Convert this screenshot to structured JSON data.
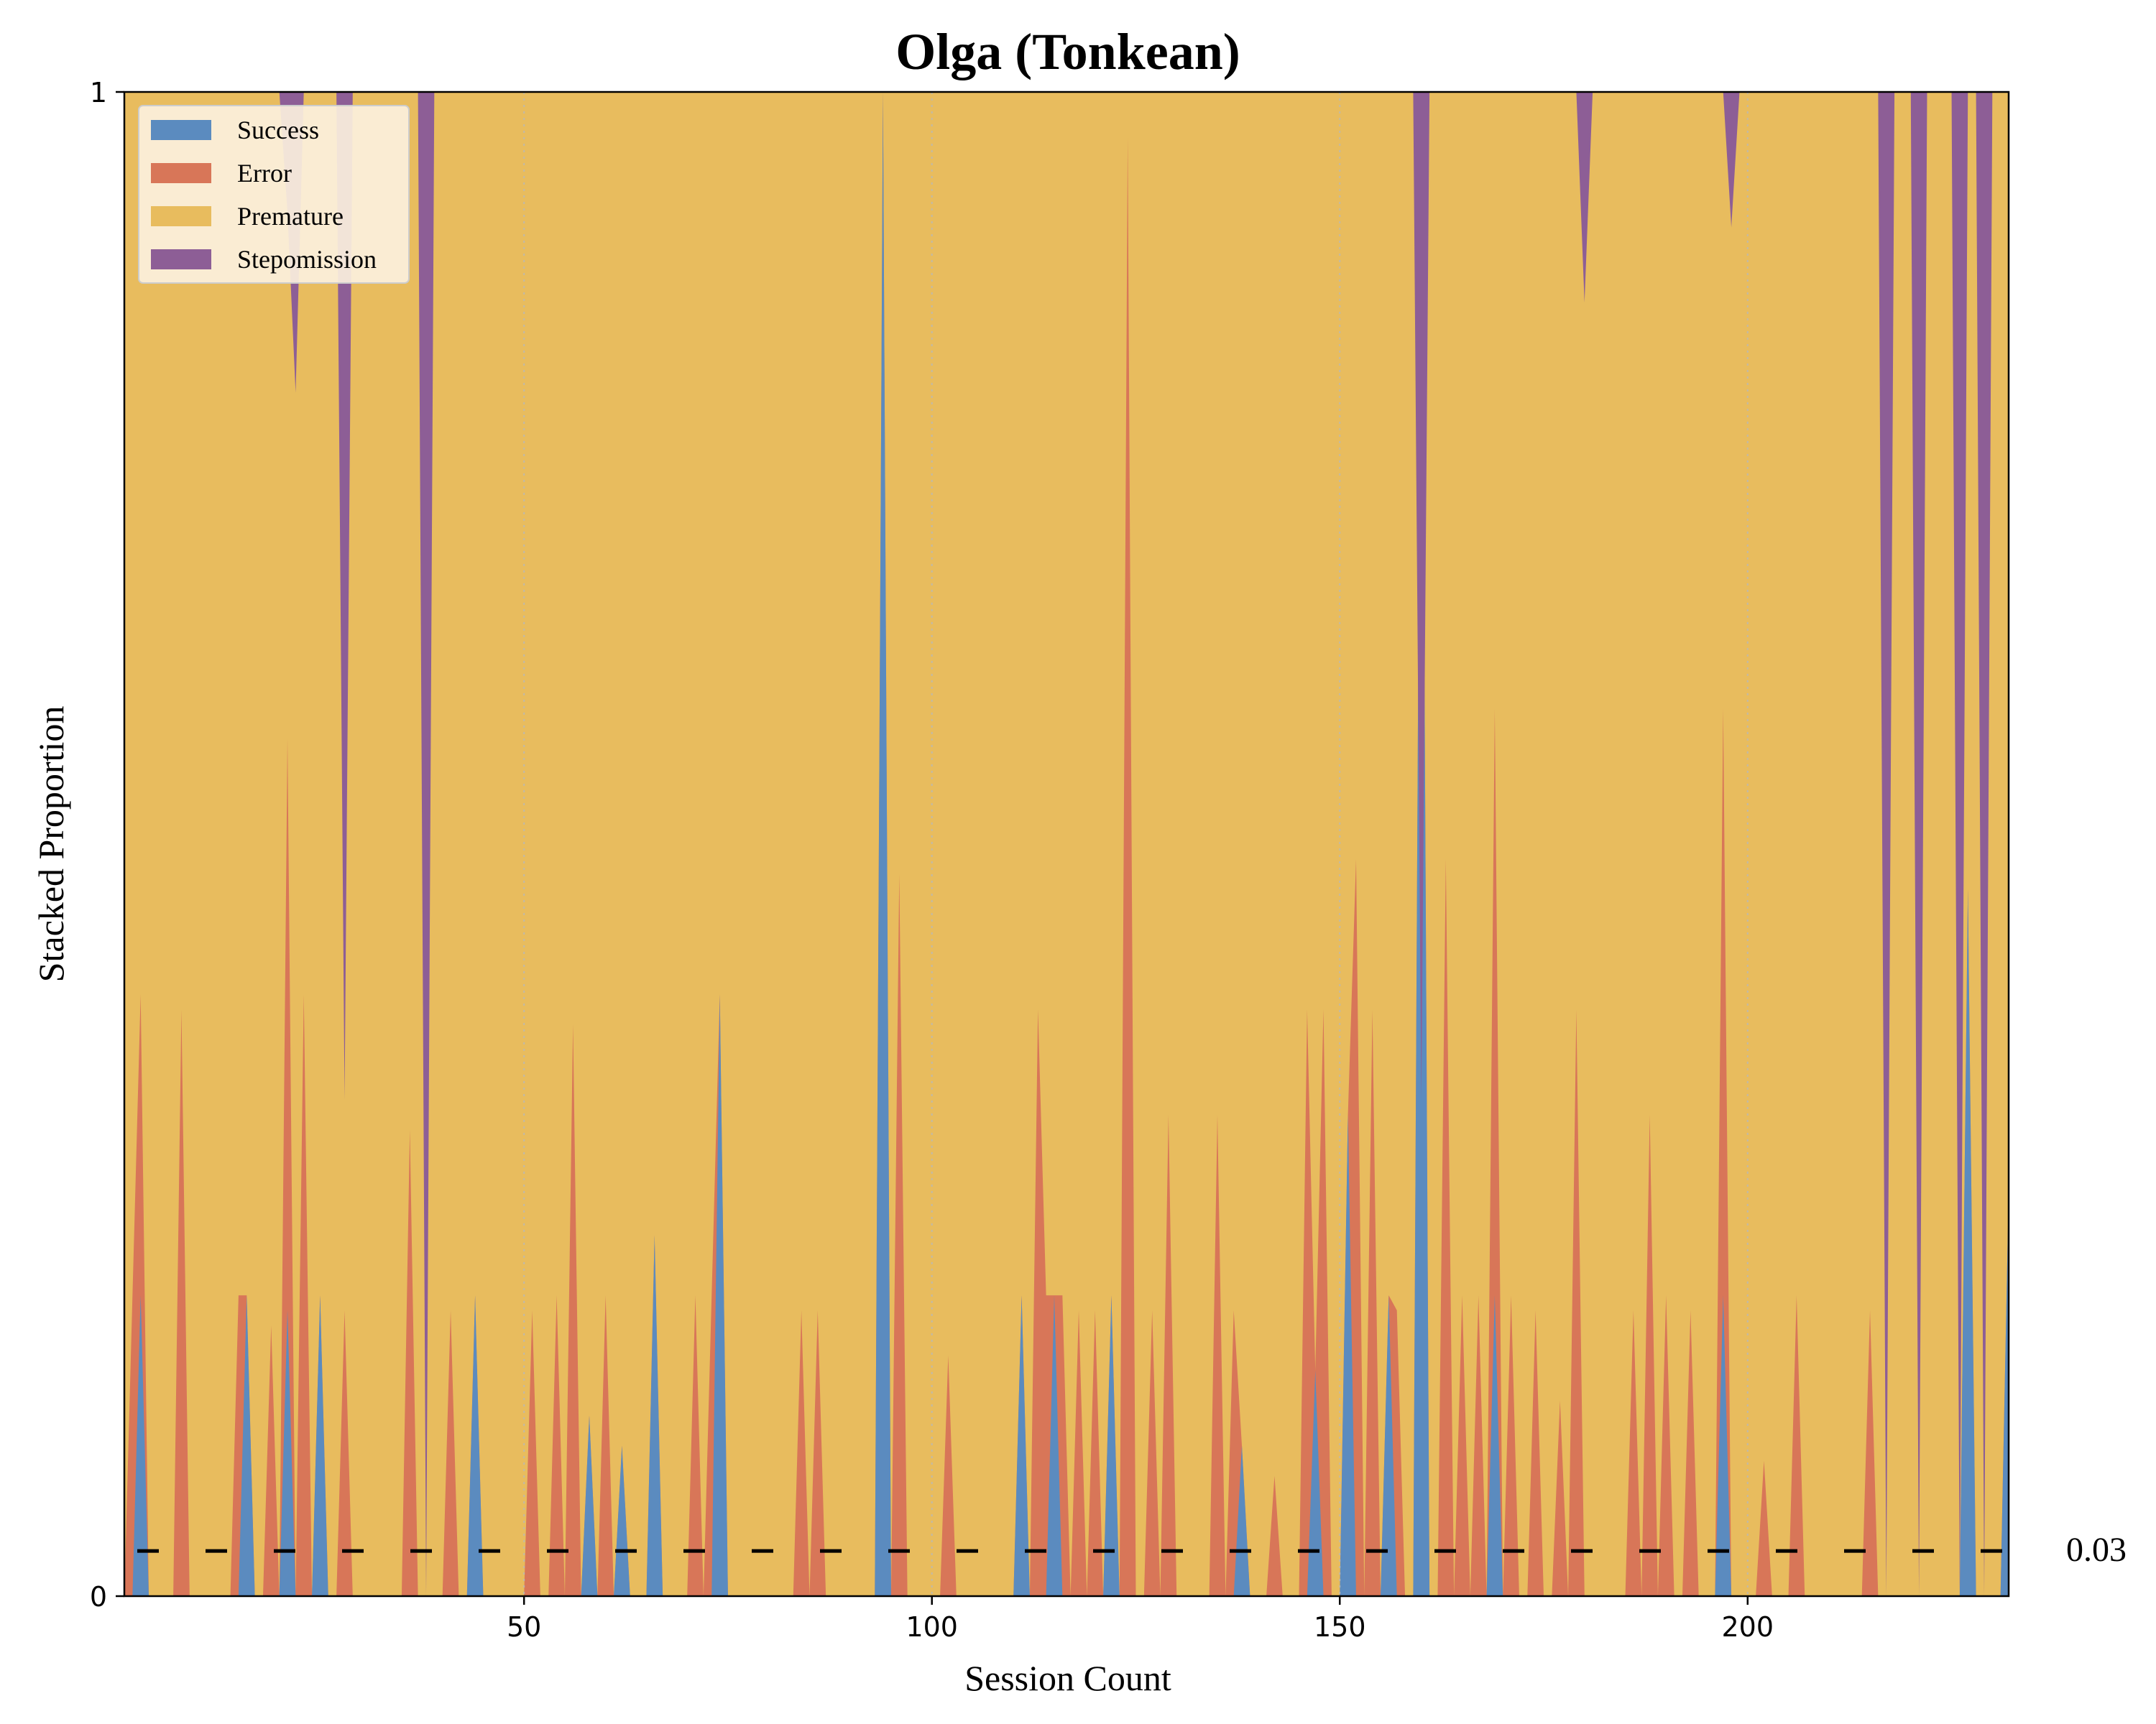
{
  "chart_data": {
    "type": "area",
    "stacked": true,
    "title": "Olga (Tonkean)",
    "xlabel": "Session Count",
    "ylabel": "Stacked Proportion",
    "xlim": [
      1,
      232
    ],
    "ylim": [
      0,
      1
    ],
    "x_ticks": [
      50,
      100,
      150,
      200
    ],
    "y_ticks": [
      0,
      1
    ],
    "grid": {
      "x": true,
      "y": false,
      "style": "dotted"
    },
    "legend_position": "top-left",
    "reference_line": {
      "y": 0.03,
      "label": "0.03",
      "style": "dashed",
      "color": "#000000"
    },
    "colors": {
      "success": "#5b8bbf",
      "error": "#d87658",
      "premature": "#e8bc5e",
      "stepomission": "#8d5e96"
    },
    "series_order": [
      "success",
      "error",
      "premature",
      "stepomission"
    ],
    "legend": [
      {
        "key": "success",
        "label": "Success"
      },
      {
        "key": "error",
        "label": "Error"
      },
      {
        "key": "premature",
        "label": "Premature"
      },
      {
        "key": "stepomission",
        "label": "Stepomission"
      }
    ],
    "success_points": [
      [
        3,
        0.2
      ],
      [
        74,
        0.4
      ],
      [
        94,
        1.0
      ],
      [
        160,
        1.0
      ],
      [
        227,
        0.47
      ],
      [
        232,
        0.27
      ],
      [
        16,
        0.2
      ],
      [
        21,
        0.19
      ],
      [
        25,
        0.2
      ],
      [
        44,
        0.2
      ],
      [
        58,
        0.12
      ],
      [
        62,
        0.1
      ],
      [
        66,
        0.24
      ],
      [
        111,
        0.2
      ],
      [
        115,
        0.2
      ],
      [
        122,
        0.2
      ],
      [
        138,
        0.1
      ],
      [
        147,
        0.15
      ],
      [
        151,
        0.32
      ],
      [
        156,
        0.2
      ],
      [
        169,
        0.2
      ],
      [
        197,
        0.2
      ]
    ],
    "error_points": [
      [
        2,
        0.2
      ],
      [
        3,
        0.2
      ],
      [
        8,
        0.39
      ],
      [
        15,
        0.2
      ],
      [
        19,
        0.18
      ],
      [
        21,
        0.38
      ],
      [
        23,
        0.4
      ],
      [
        28,
        0.19
      ],
      [
        36,
        0.31
      ],
      [
        41,
        0.19
      ],
      [
        51,
        0.19
      ],
      [
        54,
        0.2
      ],
      [
        56,
        0.38
      ],
      [
        60,
        0.2
      ],
      [
        71,
        0.2
      ],
      [
        73,
        0.2
      ],
      [
        84,
        0.19
      ],
      [
        86,
        0.19
      ],
      [
        96,
        0.48
      ],
      [
        102,
        0.16
      ],
      [
        113,
        0.39
      ],
      [
        114,
        0.2
      ],
      [
        116,
        0.2
      ],
      [
        118,
        0.19
      ],
      [
        120,
        0.19
      ],
      [
        124,
        0.97
      ],
      [
        127,
        0.19
      ],
      [
        129,
        0.32
      ],
      [
        135,
        0.32
      ],
      [
        137,
        0.19
      ],
      [
        142,
        0.08
      ],
      [
        146,
        0.39
      ],
      [
        148,
        0.39
      ],
      [
        152,
        0.49
      ],
      [
        154,
        0.39
      ],
      [
        157,
        0.19
      ],
      [
        163,
        0.49
      ],
      [
        165,
        0.2
      ],
      [
        167,
        0.2
      ],
      [
        169,
        0.39
      ],
      [
        171,
        0.2
      ],
      [
        174,
        0.19
      ],
      [
        177,
        0.13
      ],
      [
        179,
        0.39
      ],
      [
        186,
        0.19
      ],
      [
        188,
        0.32
      ],
      [
        190,
        0.2
      ],
      [
        193,
        0.19
      ],
      [
        197,
        0.39
      ],
      [
        202,
        0.09
      ],
      [
        206,
        0.2
      ],
      [
        215,
        0.19
      ],
      [
        217,
        0.0
      ]
    ],
    "stepomission_points": [
      [
        21,
        0.08
      ],
      [
        22,
        0.2
      ],
      [
        28,
        0.67
      ],
      [
        38,
        1.0
      ],
      [
        160,
        0.67
      ],
      [
        180,
        0.14
      ],
      [
        198,
        0.09
      ],
      [
        217,
        1.0
      ],
      [
        221,
        1.0
      ],
      [
        226,
        1.0
      ],
      [
        229,
        1.0
      ]
    ]
  }
}
